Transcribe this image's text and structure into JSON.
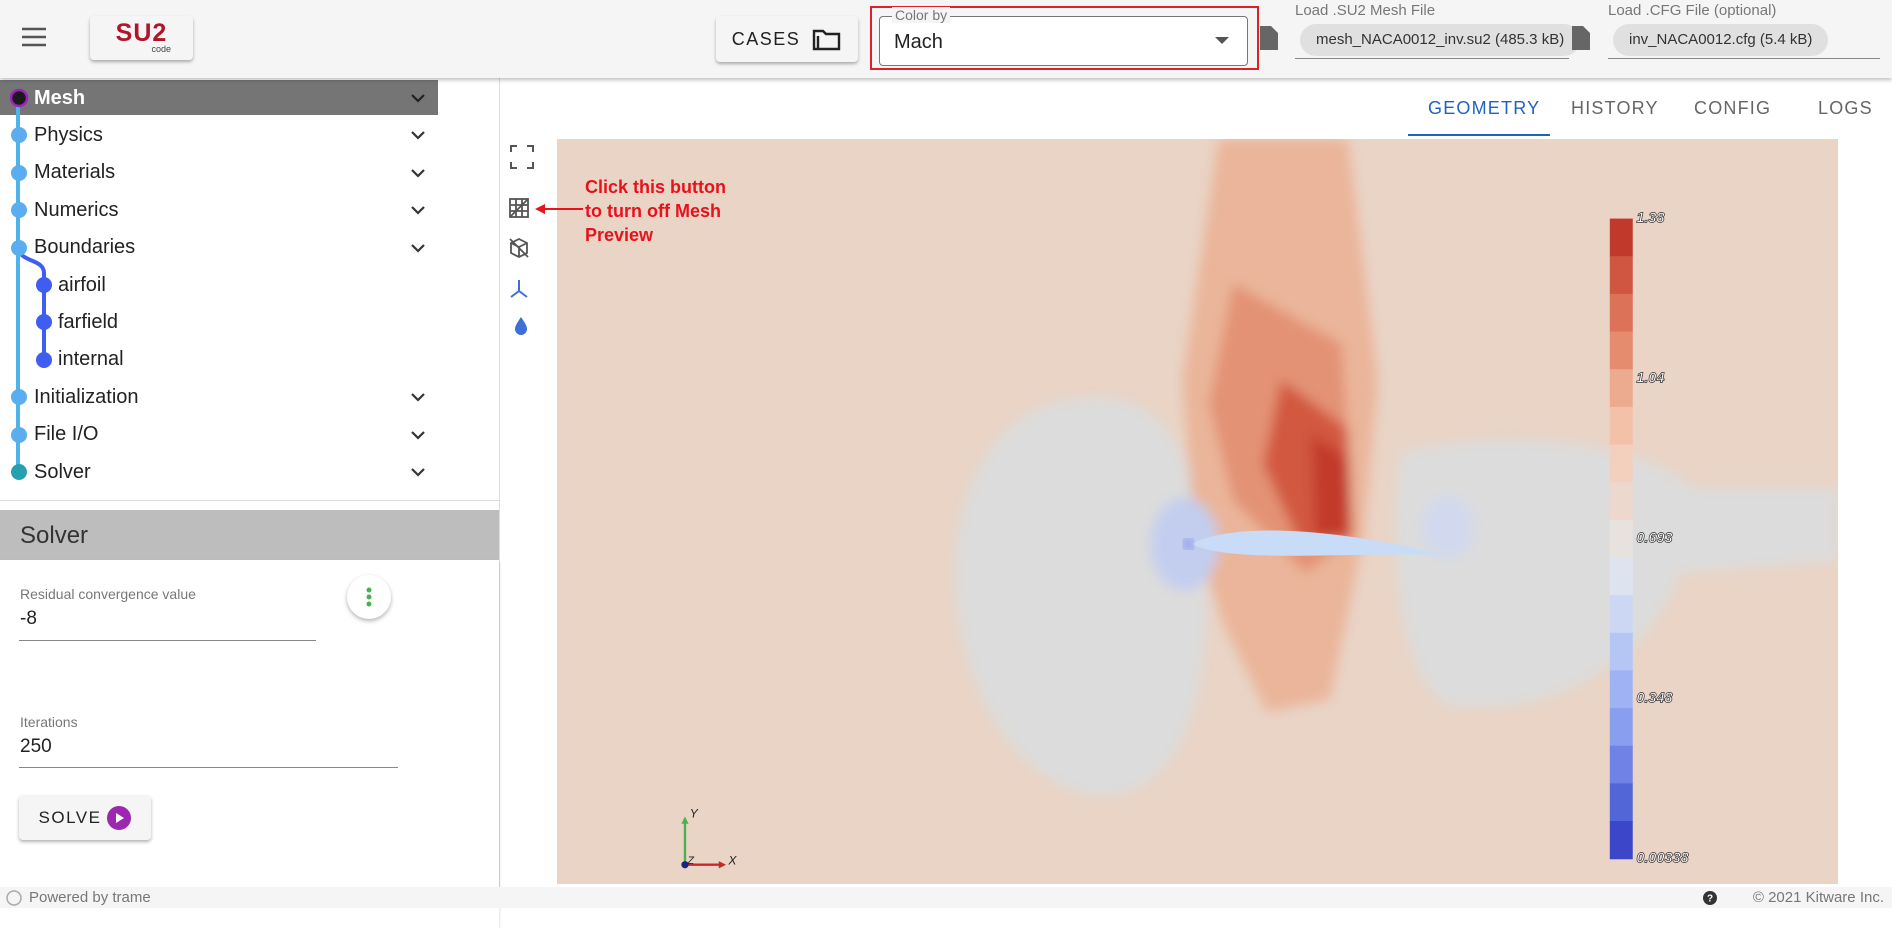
{
  "header": {
    "logo": "SU2",
    "logo_sub": "code",
    "cases_button": "CASES",
    "color_by": {
      "label": "Color by",
      "value": "Mach"
    },
    "mesh_file": {
      "label": "Load .SU2 Mesh File",
      "file": "mesh_NACA0012_inv.su2 (485.3 kB)"
    },
    "cfg_file": {
      "label": "Load .CFG File (optional)",
      "file": "inv_NACA0012.cfg (5.4 kB)"
    }
  },
  "tree": {
    "items": [
      "Mesh",
      "Physics",
      "Materials",
      "Numerics",
      "Boundaries",
      "Initialization",
      "File I/O",
      "Solver"
    ],
    "children": [
      "airfoil",
      "farfield",
      "internal"
    ]
  },
  "panel": {
    "title": "Solver",
    "fields": [
      {
        "label": "Residual convergence value",
        "value": -8
      },
      {
        "label": "Iterations",
        "value": 250
      }
    ],
    "button": "SOLVE"
  },
  "tabs": [
    "GEOMETRY",
    "HISTORY",
    "CONFIG",
    "LOGS"
  ],
  "annotation": [
    "Click this button",
    "to turn off Mesh",
    "Preview"
  ],
  "colorbar": {
    "labels": [
      "1.38",
      "1.04",
      "0.693",
      "0.348",
      "0.00338"
    ]
  },
  "axes": {
    "x": "X",
    "y": "Y",
    "z": "Z"
  },
  "footer": {
    "left": "Powered by trame",
    "right": "© 2021 Kitware Inc."
  }
}
